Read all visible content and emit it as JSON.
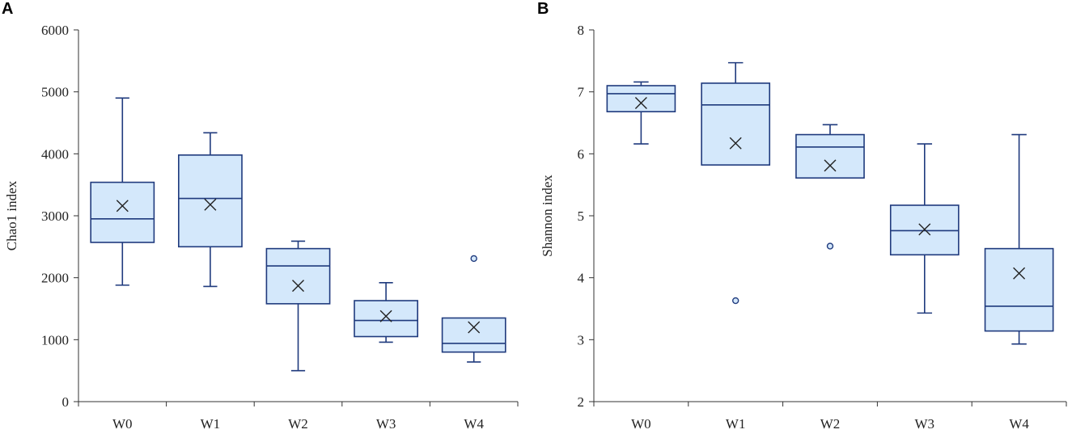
{
  "colors": {
    "box_stroke": "#1f3a7d",
    "box_fill": "#d4e8fb",
    "axis": "#333333",
    "text": "#222222"
  },
  "chart_data": [
    {
      "type": "box",
      "panel": "A",
      "title": "",
      "xlabel": "",
      "ylabel": "Chao1 index",
      "ylim": [
        0,
        6000
      ],
      "yticks": [
        0,
        1000,
        2000,
        3000,
        4000,
        5000,
        6000
      ],
      "categories": [
        "W0",
        "W1",
        "W2",
        "W3",
        "W4"
      ],
      "boxes": [
        {
          "name": "W0",
          "min": 1880,
          "q1": 2570,
          "median": 2950,
          "q3": 3540,
          "max": 4900,
          "mean": 3160,
          "outliers": []
        },
        {
          "name": "W1",
          "min": 1860,
          "q1": 2500,
          "median": 3280,
          "q3": 3980,
          "max": 4340,
          "mean": 3180,
          "outliers": []
        },
        {
          "name": "W2",
          "min": 500,
          "q1": 1580,
          "median": 2190,
          "q3": 2470,
          "max": 2590,
          "mean": 1870,
          "outliers": []
        },
        {
          "name": "W3",
          "min": 960,
          "q1": 1050,
          "median": 1310,
          "q3": 1630,
          "max": 1920,
          "mean": 1380,
          "outliers": []
        },
        {
          "name": "W4",
          "min": 640,
          "q1": 800,
          "median": 940,
          "q3": 1350,
          "max": 1350,
          "mean": 1200,
          "outliers": [
            2310
          ]
        }
      ]
    },
    {
      "type": "box",
      "panel": "B",
      "title": "",
      "xlabel": "",
      "ylabel": "Shannon index",
      "ylim": [
        2,
        8
      ],
      "yticks": [
        2,
        3,
        4,
        5,
        6,
        7,
        8
      ],
      "categories": [
        "W0",
        "W1",
        "W2",
        "W3",
        "W4"
      ],
      "boxes": [
        {
          "name": "W0",
          "min": 6.16,
          "q1": 6.68,
          "median": 6.97,
          "q3": 7.1,
          "max": 7.16,
          "mean": 6.82,
          "outliers": []
        },
        {
          "name": "W1",
          "min": 5.82,
          "q1": 5.82,
          "median": 6.79,
          "q3": 7.14,
          "max": 7.47,
          "mean": 6.17,
          "outliers": [
            3.63
          ]
        },
        {
          "name": "W2",
          "min": 5.61,
          "q1": 5.61,
          "median": 6.11,
          "q3": 6.31,
          "max": 6.47,
          "mean": 5.81,
          "outliers": [
            4.51
          ]
        },
        {
          "name": "W3",
          "min": 3.43,
          "q1": 4.37,
          "median": 4.76,
          "q3": 5.17,
          "max": 6.16,
          "mean": 4.78,
          "outliers": []
        },
        {
          "name": "W4",
          "min": 2.93,
          "q1": 3.14,
          "median": 3.54,
          "q3": 4.47,
          "max": 6.31,
          "mean": 4.07,
          "outliers": []
        }
      ]
    }
  ]
}
